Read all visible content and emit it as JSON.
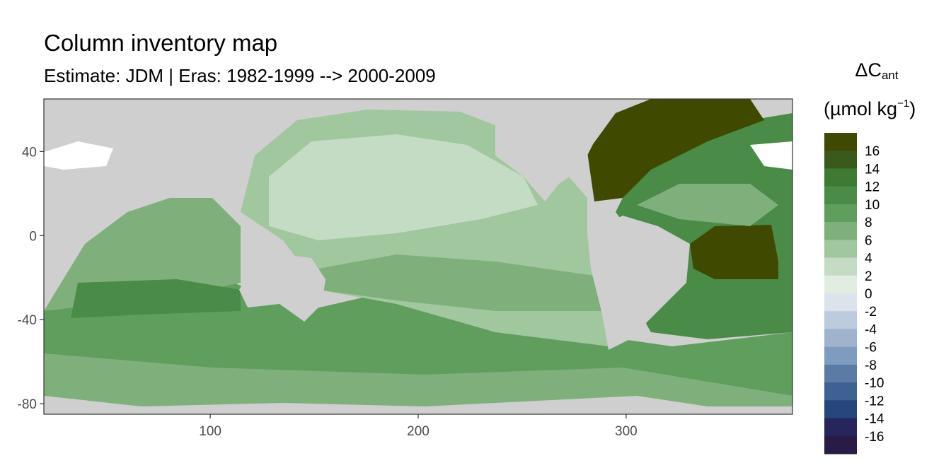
{
  "title": "Column inventory map",
  "subtitle": "Estimate: JDM  | Eras: 1982-1999 --> 2000-2009",
  "legend": {
    "title_main": "ΔC",
    "title_sub": "ant",
    "unit_base": "(µmol kg",
    "unit_exp": "−1",
    "unit_close": ")",
    "labels": [
      "16",
      "14",
      "12",
      "10",
      "8",
      "6",
      "4",
      "2",
      "0",
      "-2",
      "-4",
      "-6",
      "-8",
      "-10",
      "-12",
      "-14",
      "-16"
    ],
    "colors": [
      "#3f4a00",
      "#3a5a1c",
      "#3f7a32",
      "#4a8b48",
      "#5f9e5c",
      "#7fb07c",
      "#a0c79e",
      "#c4dcc3",
      "#e2ede2",
      "#dce3ec",
      "#bccbdd",
      "#9fb3cc",
      "#7f9bbf",
      "#5b7ba6",
      "#3e6194",
      "#27467e",
      "#26255c",
      "#281c46"
    ]
  },
  "axes": {
    "x_ticks": [
      100,
      200,
      300
    ],
    "y_ticks": [
      40,
      0,
      -40,
      -80
    ],
    "x_range": [
      20,
      380
    ],
    "y_range": [
      -85,
      65
    ]
  },
  "chart_data": {
    "type": "heatmap",
    "title": "Column inventory map",
    "subtitle": "Estimate: JDM  | Eras: 1982-1999 --> 2000-2009",
    "x_range": [
      20,
      380
    ],
    "y_range": [
      -85,
      65
    ],
    "x_ticks": [
      100,
      200,
      300
    ],
    "y_ticks": [
      40,
      0,
      -40,
      -80
    ],
    "value_range": [
      -17,
      17
    ],
    "land_color": "#cfcfcf",
    "legend_position": "right",
    "grid": false
  },
  "colors": {
    "land": "#cfcfcf",
    "frame": "#333333",
    "tick_text": "#4d4d4d"
  }
}
